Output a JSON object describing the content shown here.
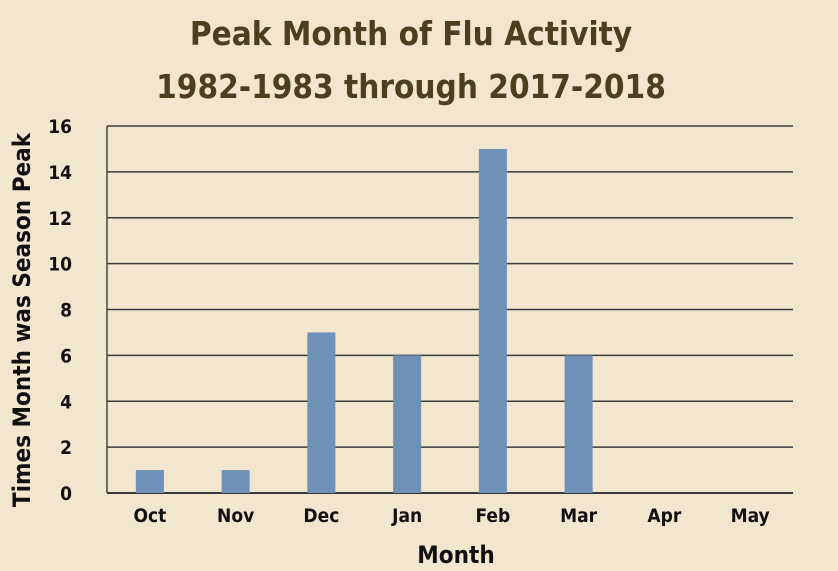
{
  "chart_data": {
    "type": "bar",
    "title": "Peak Month of Flu Activity",
    "subtitle": "1982-1983 through 2017-2018",
    "xlabel": "Month",
    "ylabel": "Times Month was Season Peak",
    "categories": [
      "Oct",
      "Nov",
      "Dec",
      "Jan",
      "Feb",
      "Mar",
      "Apr",
      "May"
    ],
    "values": [
      1,
      1,
      7,
      6,
      15,
      6,
      0,
      0
    ],
    "ylim": [
      0,
      16
    ],
    "yticks": [
      "0",
      "2",
      "4",
      "6",
      "8",
      "10",
      "12",
      "14",
      "16"
    ],
    "grid": true,
    "bar_color": "#6e91b8",
    "grid_color": "#3a3a3a",
    "background_color": "#f3e6cf",
    "title_color": "#4a4020"
  }
}
